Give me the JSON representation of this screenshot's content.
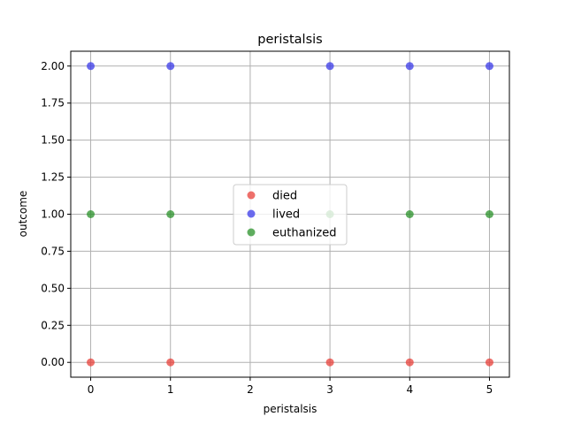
{
  "chart_data": {
    "type": "scatter",
    "title": "peristalsis",
    "xlabel": "peristalsis",
    "ylabel": "outcome",
    "xlim": [
      -0.25,
      5.25
    ],
    "ylim": [
      -0.1,
      2.1
    ],
    "xticks": [
      0,
      1,
      2,
      3,
      4,
      5
    ],
    "xtick_labels": [
      "0",
      "1",
      "2",
      "3",
      "4",
      "5"
    ],
    "yticks": [
      0,
      0.25,
      0.5,
      0.75,
      1,
      1.25,
      1.5,
      1.75,
      2
    ],
    "ytick_labels": [
      "0.00",
      "0.25",
      "0.50",
      "0.75",
      "1.00",
      "1.25",
      "1.50",
      "1.75",
      "2.00"
    ],
    "grid": true,
    "legend_position": "center",
    "series": [
      {
        "name": "died",
        "color": "#e8403a",
        "points": [
          [
            0,
            0
          ],
          [
            1,
            0
          ],
          [
            3,
            0
          ],
          [
            4,
            0
          ],
          [
            5,
            0
          ]
        ]
      },
      {
        "name": "lived",
        "color": "#3a3ae8",
        "points": [
          [
            0,
            2
          ],
          [
            1,
            2
          ],
          [
            3,
            2
          ],
          [
            4,
            2
          ],
          [
            5,
            2
          ]
        ]
      },
      {
        "name": "euthanized",
        "color": "#2a912a",
        "points": [
          [
            0,
            1
          ],
          [
            1,
            1
          ],
          [
            3,
            1
          ],
          [
            4,
            1
          ],
          [
            5,
            1
          ]
        ]
      }
    ]
  }
}
